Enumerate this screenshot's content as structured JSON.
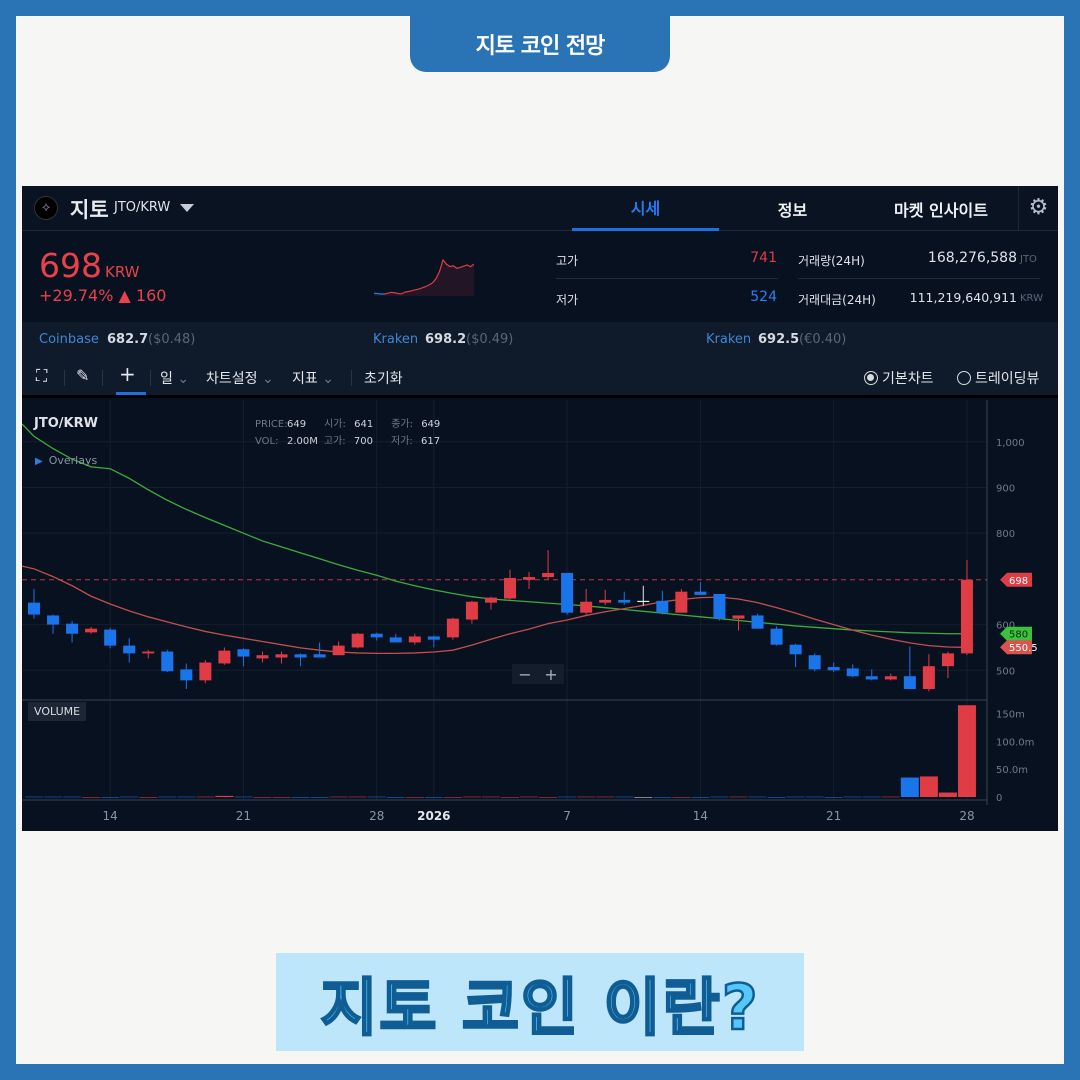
{
  "page": {
    "top_title": "지토 코인 전망",
    "banner_title": "지토 코인 이란?"
  },
  "header": {
    "coin_name": "지토",
    "pair": "JTO/KRW",
    "tabs": [
      {
        "label": "시세",
        "active": true
      },
      {
        "label": "정보",
        "active": false
      },
      {
        "label": "마켓 인사이트",
        "active": false
      }
    ]
  },
  "price": {
    "value": "698",
    "unit": "KRW",
    "change": "+29.74% ▲ 160"
  },
  "sparkline": [
    540,
    538,
    536,
    536,
    540,
    544,
    542,
    538,
    537,
    545,
    548,
    552,
    556,
    560,
    566,
    572,
    580,
    590,
    610,
    645,
    700,
    680,
    668,
    672,
    660,
    664,
    670,
    676,
    668,
    680
  ],
  "stats": {
    "high_label": "고가",
    "high_value": "741",
    "low_label": "저가",
    "low_value": "524",
    "volume_label": "거래량(24H)",
    "volume_value": "168,276,588",
    "volume_unit": "JTO",
    "amount_label": "거래대금(24H)",
    "amount_value": "111,219,640,911",
    "amount_unit": "KRW"
  },
  "exchanges": [
    {
      "name": "Coinbase",
      "price": "682.7",
      "sub": "($0.48)"
    },
    {
      "name": "Kraken",
      "price": "698.2",
      "sub": "($0.49)"
    },
    {
      "name": "Kraken",
      "price": "692.5",
      "sub": "(€0.40)"
    }
  ],
  "toolbar": {
    "period": "일",
    "chart_settings": "차트설정",
    "indicators": "지표",
    "reset": "초기화",
    "basic_chart": "기본차트",
    "tradingview": "트레이딩뷰",
    "basic_selected": true
  },
  "chart_info": {
    "title": "JTO/KRW",
    "overlays": "Overlays",
    "price_label": "PRICE:",
    "price": "649",
    "open_label": "시가:",
    "open": "641",
    "close_label": "종가:",
    "close": "649",
    "vol_label": "VOL:",
    "vol": "2.00M",
    "high_label": "고가:",
    "high": "700",
    "low_label": "저가:",
    "low": "617",
    "volume_tag": "VOLUME"
  },
  "colors": {
    "up": "#e03c46",
    "down": "#1a74ea",
    "ma_short": "#c0504d",
    "ma_long": "#3cab3c",
    "frame": "#2a73b5"
  },
  "chart_data": {
    "type": "candlestick",
    "ylim": [
      435,
      1087
    ],
    "y_ticks": [
      {
        "value": 500,
        "label": "500"
      },
      {
        "value": 600,
        "label": "600"
      },
      {
        "value": 800,
        "label": "800"
      },
      {
        "value": 900,
        "label": "900"
      },
      {
        "value": 1000,
        "label": "1,000"
      }
    ],
    "x_ticks": [
      {
        "label": "14",
        "index": 4
      },
      {
        "label": "21",
        "index": 11
      },
      {
        "label": "28",
        "index": 18
      },
      {
        "label": "2026",
        "index": 21
      },
      {
        "label": "7",
        "index": 28
      },
      {
        "label": "14",
        "index": 35
      },
      {
        "label": "21",
        "index": 42
      },
      {
        "label": "28",
        "index": 49
      }
    ],
    "price_line": 698,
    "markers": [
      {
        "label": "698",
        "value": 698,
        "color": "#e03c46"
      },
      {
        "label": "580",
        "value": 580,
        "color": "#3cc13c"
      },
      {
        "label": "550.5",
        "value": 550.5,
        "color": "#d9534f"
      }
    ],
    "ohlc": [
      [
        648,
        678,
        613,
        622
      ],
      [
        620,
        622,
        580,
        600
      ],
      [
        602,
        608,
        561,
        580
      ],
      [
        583,
        595,
        580,
        591
      ],
      [
        589,
        593,
        548,
        554
      ],
      [
        554,
        570,
        517,
        537
      ],
      [
        537,
        545,
        526,
        541
      ],
      [
        541,
        545,
        496,
        498
      ],
      [
        502,
        515,
        459,
        478
      ],
      [
        478,
        522,
        472,
        517
      ],
      [
        515,
        550,
        512,
        543
      ],
      [
        546,
        548,
        509,
        530
      ],
      [
        526,
        541,
        517,
        533
      ],
      [
        528,
        541,
        515,
        535
      ],
      [
        535,
        537,
        509,
        528
      ],
      [
        535,
        561,
        528,
        528
      ],
      [
        533,
        563,
        533,
        554
      ],
      [
        550,
        582,
        548,
        580
      ],
      [
        580,
        582,
        565,
        572
      ],
      [
        572,
        580,
        561,
        561
      ],
      [
        561,
        580,
        556,
        574
      ],
      [
        574,
        576,
        550,
        567
      ],
      [
        572,
        615,
        567,
        613
      ],
      [
        611,
        652,
        602,
        650
      ],
      [
        648,
        661,
        633,
        659
      ],
      [
        657,
        720,
        655,
        702
      ],
      [
        698,
        715,
        678,
        704
      ],
      [
        704,
        763,
        698,
        713
      ],
      [
        713,
        713,
        622,
        626
      ],
      [
        626,
        678,
        622,
        650
      ],
      [
        648,
        676,
        643,
        654
      ],
      [
        654,
        672,
        643,
        648
      ],
      [
        652,
        685,
        641,
        652
      ],
      [
        652,
        674,
        622,
        626
      ],
      [
        626,
        678,
        626,
        672
      ],
      [
        672,
        693,
        665,
        665
      ],
      [
        667,
        667,
        609,
        613
      ],
      [
        613,
        620,
        587,
        620
      ],
      [
        620,
        624,
        591,
        591
      ],
      [
        591,
        596,
        554,
        556
      ],
      [
        556,
        558,
        507,
        535
      ],
      [
        533,
        537,
        498,
        502
      ],
      [
        507,
        517,
        496,
        500
      ],
      [
        504,
        513,
        485,
        487
      ],
      [
        487,
        502,
        478,
        480
      ],
      [
        480,
        493,
        478,
        487
      ],
      [
        487,
        552,
        459,
        459
      ],
      [
        459,
        535,
        454,
        509
      ],
      [
        509,
        541,
        483,
        537
      ],
      [
        537,
        741,
        533,
        698
      ]
    ],
    "ma_short": [
      722,
      705,
      685,
      662,
      645,
      630,
      617,
      606,
      595,
      585,
      577,
      570,
      563,
      556,
      549,
      544,
      540,
      538,
      537,
      537,
      538,
      540,
      544,
      555,
      568,
      580,
      590,
      602,
      610,
      620,
      628,
      635,
      642,
      650,
      655,
      659,
      660,
      656,
      648,
      637,
      625,
      612,
      600,
      588,
      577,
      568,
      560,
      554,
      551,
      550
    ],
    "ma_long": [
      1012,
      985,
      962,
      945,
      941,
      920,
      895,
      872,
      852,
      834,
      817,
      800,
      783,
      770,
      757,
      744,
      731,
      719,
      708,
      695,
      685,
      676,
      668,
      661,
      656,
      653,
      650,
      647,
      644,
      641,
      637,
      633,
      629,
      625,
      621,
      617,
      613,
      609,
      605,
      601,
      597,
      594,
      591,
      588,
      586,
      584,
      582,
      581,
      580,
      580
    ],
    "volume": {
      "ylim": [
        0,
        160
      ],
      "ticks": [
        {
          "value": 0,
          "label": "0"
        },
        {
          "value": 50,
          "label": "50.0m"
        },
        {
          "value": 100,
          "label": "100.0m"
        },
        {
          "value": 150,
          "label": "150m"
        }
      ],
      "values": [
        1,
        1,
        1,
        0,
        0,
        1,
        0,
        1,
        1,
        1,
        2,
        1,
        0,
        0,
        0,
        0,
        1,
        1,
        1,
        0,
        0,
        0,
        0,
        1,
        1,
        0,
        1,
        0,
        1,
        1,
        1,
        1,
        0,
        0,
        0,
        0,
        1,
        1,
        1,
        0,
        1,
        1,
        0,
        1,
        1,
        1,
        35,
        37,
        8,
        165
      ]
    }
  }
}
